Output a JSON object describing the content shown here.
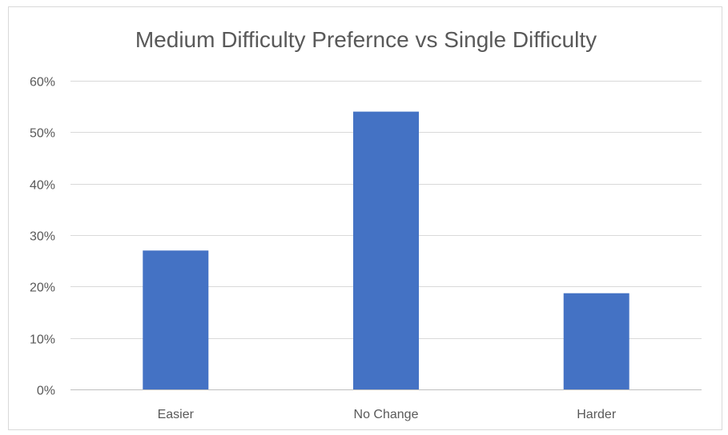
{
  "chart_data": {
    "type": "bar",
    "title": "Medium Difficulty Prefernce vs Single Difficulty",
    "categories": [
      "Easier",
      "No Change",
      "Harder"
    ],
    "values": [
      27,
      54,
      18.7
    ],
    "value_format": "percent",
    "xlabel": "",
    "ylabel": "",
    "ylim": [
      0,
      60
    ],
    "y_ticks": [
      "0%",
      "10%",
      "20%",
      "30%",
      "40%",
      "50%",
      "60%"
    ],
    "grid": true,
    "legend": "none",
    "bar_color": "#4472c4"
  }
}
